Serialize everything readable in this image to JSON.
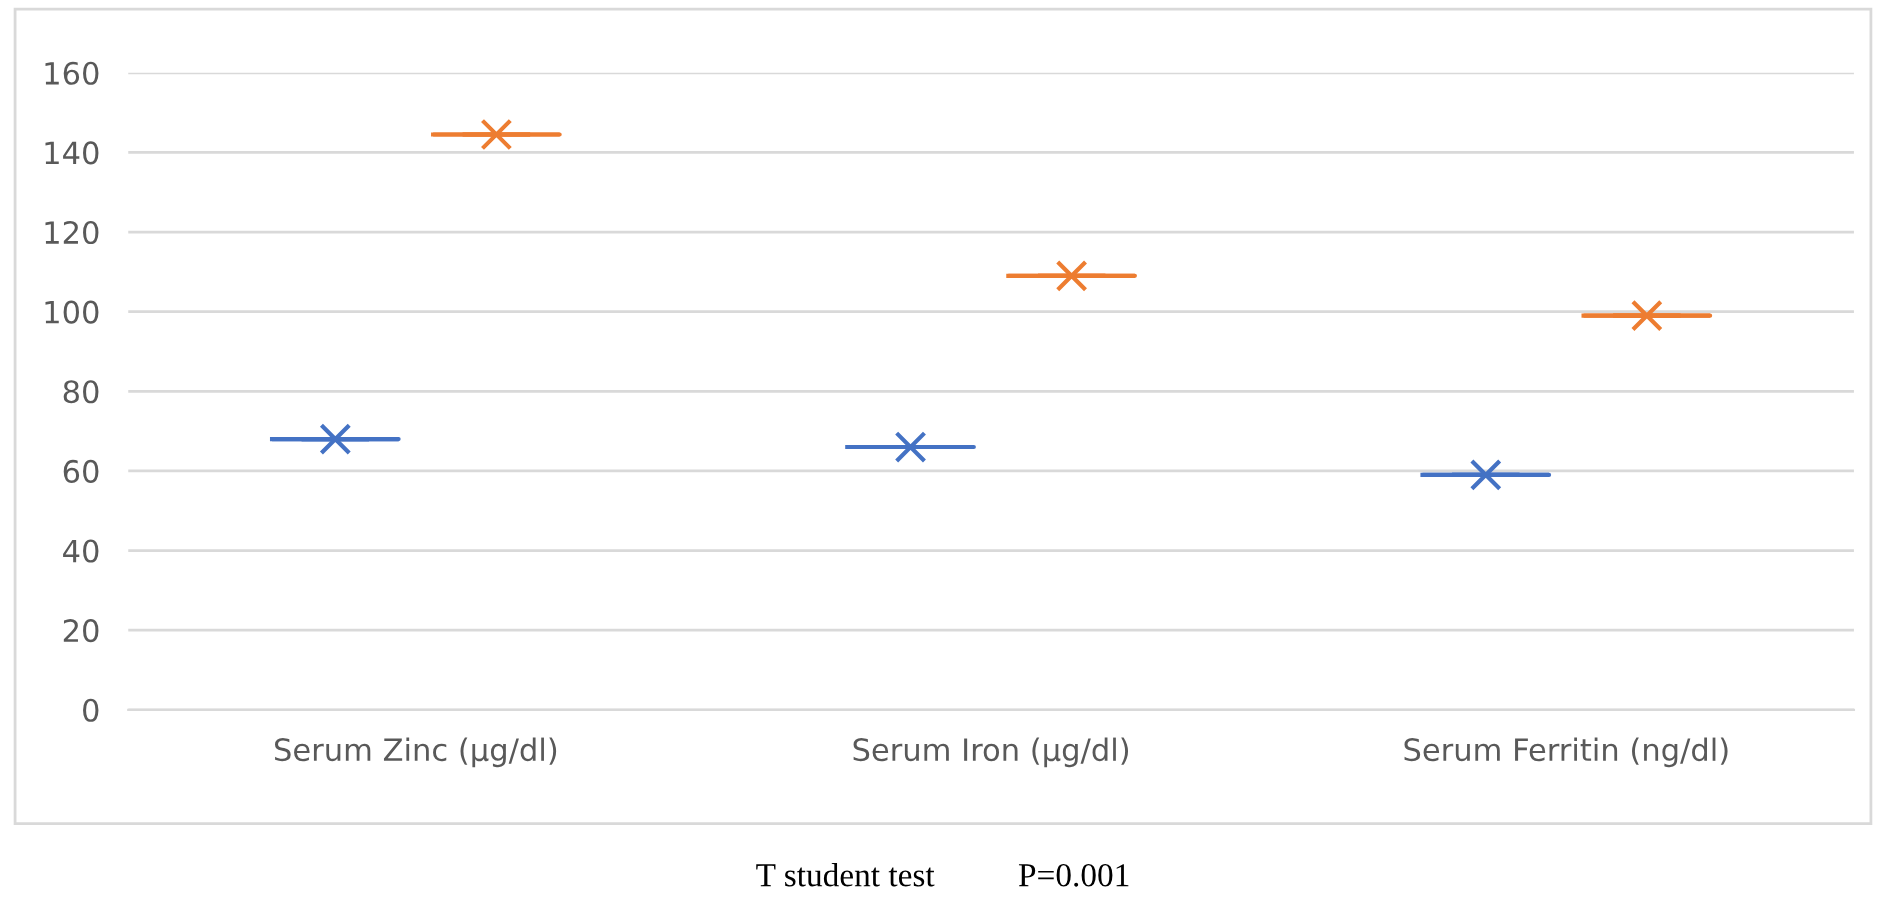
{
  "chart_data": {
    "type": "box",
    "categories": [
      "Serum Zinc (µg/dl)",
      "Serum Iron (µg/dl)",
      "Serum Ferritin (ng/dl)"
    ],
    "series": [
      {
        "color": "#4472c4",
        "boxes": [
          {
            "low": 68,
            "q1": 68,
            "median": 68,
            "q3": 68,
            "high": 68,
            "mean": 68
          },
          {
            "low": 66,
            "q1": 66,
            "median": 66,
            "q3": 66,
            "high": 66,
            "mean": 66
          },
          {
            "low": 59,
            "q1": 59,
            "median": 59,
            "q3": 59,
            "high": 59,
            "mean": 59
          }
        ]
      },
      {
        "color": "#ed7d31",
        "boxes": [
          {
            "low": 144.5,
            "q1": 144.5,
            "median": 144.5,
            "q3": 144.5,
            "high": 144.5,
            "mean": 144.5
          },
          {
            "low": 109,
            "q1": 109,
            "median": 109,
            "q3": 109,
            "high": 109,
            "mean": 109
          },
          {
            "low": 99,
            "q1": 99,
            "median": 99,
            "q3": 99,
            "high": 99,
            "mean": 99
          }
        ]
      }
    ],
    "ylim": [
      0,
      160
    ],
    "yticks": [
      0,
      20,
      40,
      60,
      80,
      100,
      120,
      140,
      160
    ],
    "grid": "y",
    "marker": "cross",
    "annotations": [
      "T student test          P=0.001"
    ]
  }
}
